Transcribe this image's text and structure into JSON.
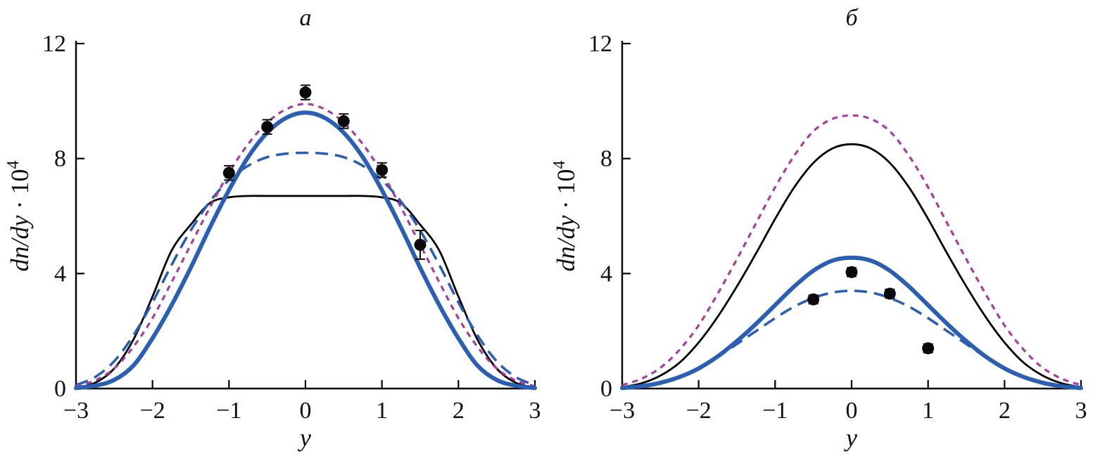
{
  "figure": {
    "background": "#ffffff",
    "panel_labels": [
      "a",
      "б"
    ]
  },
  "colors": {
    "curve_black": "#000000",
    "curve_blue": "#2a5fb4",
    "curve_magenta": "#a83d9e",
    "data_points": "#0a0a0a"
  },
  "chart_data": [
    {
      "type": "line",
      "panel_label": "a",
      "xlabel": "y",
      "ylabel_italic": "dn/dy",
      "ylabel_mid": " · 10",
      "ylabel_exp": "4",
      "xlim": [
        -3,
        3
      ],
      "ylim": [
        0,
        12
      ],
      "grid": false,
      "legend": "none",
      "xticks": [
        {
          "v": -3,
          "label": "−3"
        },
        {
          "v": -2,
          "label": "−2"
        },
        {
          "v": -1,
          "label": "−1"
        },
        {
          "v": 0,
          "label": "0"
        },
        {
          "v": 1,
          "label": "1"
        },
        {
          "v": 2,
          "label": "2"
        },
        {
          "v": 3,
          "label": "3"
        }
      ],
      "yticks": [
        {
          "v": 0,
          "label": "0"
        },
        {
          "v": 4,
          "label": "4"
        },
        {
          "v": 8,
          "label": "8"
        },
        {
          "v": 12,
          "label": "12"
        }
      ],
      "series": [
        {
          "name": "black-solid-thin",
          "color": "#000000",
          "width": 2.8,
          "dash": null,
          "x": [
            -3,
            -2.75,
            -2.5,
            -2.25,
            -2,
            -1.75,
            -1.5,
            -1.25,
            -1,
            -0.75,
            -0.5,
            -0.25,
            0,
            0.25,
            0.5,
            0.75,
            1,
            1.25,
            1.5,
            1.75,
            2,
            2.25,
            2.5,
            2.75,
            3
          ],
          "y": [
            0.03,
            0.2,
            0.7,
            1.7,
            3.2,
            4.8,
            5.7,
            6.45,
            6.65,
            6.7,
            6.7,
            6.7,
            6.7,
            6.7,
            6.7,
            6.7,
            6.65,
            6.45,
            5.7,
            4.8,
            3.2,
            1.7,
            0.7,
            0.2,
            0.03
          ]
        },
        {
          "name": "blue-long-dash",
          "color": "#2a5fb4",
          "width": 3.6,
          "dash": [
            18,
            10
          ],
          "x": [
            -3,
            -2.75,
            -2.5,
            -2.25,
            -2,
            -1.75,
            -1.5,
            -1.25,
            -1,
            -0.75,
            -0.5,
            -0.25,
            0,
            0.25,
            0.5,
            0.75,
            1,
            1.25,
            1.5,
            1.75,
            2,
            2.25,
            2.5,
            2.75,
            3
          ],
          "y": [
            0.12,
            0.4,
            0.95,
            1.85,
            3.0,
            4.3,
            5.5,
            6.5,
            7.25,
            7.75,
            8.05,
            8.17,
            8.2,
            8.17,
            8.05,
            7.75,
            7.25,
            6.5,
            5.5,
            4.3,
            3.0,
            1.85,
            0.95,
            0.4,
            0.12
          ]
        },
        {
          "name": "magenta-short-dash",
          "color": "#a83d9e",
          "width": 3.2,
          "dash": [
            8,
            7
          ],
          "x": [
            -3,
            -2.75,
            -2.5,
            -2.25,
            -2,
            -1.75,
            -1.5,
            -1.25,
            -1,
            -0.75,
            -0.5,
            -0.25,
            0,
            0.25,
            0.5,
            0.75,
            1,
            1.25,
            1.5,
            1.75,
            2,
            2.25,
            2.5,
            2.75,
            3
          ],
          "y": [
            0.08,
            0.28,
            0.7,
            1.45,
            2.45,
            3.7,
            5.0,
            6.3,
            7.5,
            8.5,
            9.25,
            9.72,
            9.9,
            9.72,
            9.25,
            8.5,
            7.5,
            6.3,
            5.0,
            3.7,
            2.45,
            1.45,
            0.7,
            0.28,
            0.08
          ]
        },
        {
          "name": "blue-solid-thick",
          "color": "#2a5fb4",
          "width": 6,
          "dash": null,
          "x": [
            -3,
            -2.75,
            -2.5,
            -2.25,
            -2,
            -1.75,
            -1.5,
            -1.25,
            -1,
            -0.75,
            -0.5,
            -0.25,
            0,
            0.25,
            0.5,
            0.75,
            1,
            1.25,
            1.5,
            1.75,
            2,
            2.25,
            2.5,
            2.75,
            3
          ],
          "y": [
            0.02,
            0.1,
            0.3,
            0.8,
            1.75,
            2.9,
            4.2,
            5.6,
            6.9,
            8.05,
            8.9,
            9.42,
            9.6,
            9.42,
            8.9,
            8.05,
            6.9,
            5.6,
            4.2,
            2.9,
            1.75,
            0.8,
            0.3,
            0.1,
            0.02
          ]
        }
      ],
      "points": {
        "name": "experimental-data",
        "color": "#0a0a0a",
        "radius": 8.5,
        "x": [
          -1,
          -0.5,
          0,
          0.5,
          1,
          1.5
        ],
        "y": [
          7.5,
          9.1,
          10.3,
          9.3,
          7.6,
          5.0
        ],
        "yerr": [
          0.25,
          0.25,
          0.25,
          0.25,
          0.25,
          0.5
        ]
      }
    },
    {
      "type": "line",
      "panel_label": "б",
      "xlabel": "y",
      "ylabel_italic": "dn/dy",
      "ylabel_mid": " · 10",
      "ylabel_exp": "4",
      "xlim": [
        -3,
        3
      ],
      "ylim": [
        0,
        12
      ],
      "grid": false,
      "legend": "none",
      "xticks": [
        {
          "v": -3,
          "label": "−3"
        },
        {
          "v": -2,
          "label": "−2"
        },
        {
          "v": -1,
          "label": "−1"
        },
        {
          "v": 0,
          "label": "0"
        },
        {
          "v": 1,
          "label": "1"
        },
        {
          "v": 2,
          "label": "2"
        },
        {
          "v": 3,
          "label": "3"
        }
      ],
      "yticks": [
        {
          "v": 0,
          "label": "0"
        },
        {
          "v": 4,
          "label": "4"
        },
        {
          "v": 8,
          "label": "8"
        },
        {
          "v": 12,
          "label": "12"
        }
      ],
      "series": [
        {
          "name": "blue-long-dash",
          "color": "#2a5fb4",
          "width": 3.6,
          "dash": [
            18,
            10
          ],
          "x": [
            -3,
            -2.75,
            -2.5,
            -2.25,
            -2,
            -1.75,
            -1.5,
            -1.25,
            -1,
            -0.75,
            -0.5,
            -0.25,
            0,
            0.25,
            0.5,
            0.75,
            1,
            1.25,
            1.5,
            1.75,
            2,
            2.25,
            2.5,
            2.75,
            3
          ],
          "y": [
            0.03,
            0.1,
            0.23,
            0.43,
            0.72,
            1.1,
            1.55,
            2.0,
            2.45,
            2.85,
            3.15,
            3.34,
            3.4,
            3.34,
            3.15,
            2.85,
            2.45,
            2.0,
            1.55,
            1.1,
            0.72,
            0.43,
            0.23,
            0.1,
            0.03
          ]
        },
        {
          "name": "black-solid-thin",
          "color": "#000000",
          "width": 2.8,
          "dash": null,
          "x": [
            -3,
            -2.75,
            -2.5,
            -2.25,
            -2,
            -1.75,
            -1.5,
            -1.25,
            -1,
            -0.75,
            -0.5,
            -0.25,
            0,
            0.25,
            0.5,
            0.75,
            1,
            1.25,
            1.5,
            1.75,
            2,
            2.25,
            2.5,
            2.75,
            3
          ],
          "y": [
            0.05,
            0.18,
            0.45,
            0.9,
            1.6,
            2.5,
            3.55,
            4.7,
            5.9,
            7.0,
            7.85,
            8.35,
            8.5,
            8.35,
            7.85,
            7.0,
            5.9,
            4.7,
            3.55,
            2.5,
            1.6,
            0.9,
            0.45,
            0.18,
            0.05
          ]
        },
        {
          "name": "magenta-short-dash",
          "color": "#a83d9e",
          "width": 3.2,
          "dash": [
            8,
            7
          ],
          "x": [
            -3,
            -2.75,
            -2.5,
            -2.25,
            -2,
            -1.75,
            -1.5,
            -1.25,
            -1,
            -0.75,
            -0.5,
            -0.25,
            0,
            0.25,
            0.5,
            0.75,
            1,
            1.25,
            1.5,
            1.75,
            2,
            2.25,
            2.5,
            2.75,
            3
          ],
          "y": [
            0.12,
            0.34,
            0.72,
            1.35,
            2.2,
            3.3,
            4.5,
            5.75,
            7.0,
            8.1,
            8.95,
            9.38,
            9.5,
            9.38,
            8.95,
            8.1,
            7.0,
            5.75,
            4.5,
            3.3,
            2.2,
            1.35,
            0.72,
            0.34,
            0.12
          ]
        },
        {
          "name": "blue-solid-thick",
          "color": "#2a5fb4",
          "width": 6,
          "dash": null,
          "x": [
            -3,
            -2.75,
            -2.5,
            -2.25,
            -2,
            -1.75,
            -1.5,
            -1.25,
            -1,
            -0.75,
            -0.5,
            -0.25,
            0,
            0.25,
            0.5,
            0.75,
            1,
            1.25,
            1.5,
            1.75,
            2,
            2.25,
            2.5,
            2.75,
            3
          ],
          "y": [
            0.02,
            0.08,
            0.2,
            0.4,
            0.7,
            1.12,
            1.65,
            2.25,
            2.9,
            3.55,
            4.1,
            4.45,
            4.55,
            4.45,
            4.1,
            3.55,
            2.9,
            2.25,
            1.65,
            1.12,
            0.7,
            0.4,
            0.2,
            0.08,
            0.02
          ]
        }
      ],
      "points": {
        "name": "experimental-data",
        "color": "#0a0a0a",
        "radius": 8.5,
        "x": [
          -0.5,
          0,
          0.5,
          1
        ],
        "y": [
          3.1,
          4.05,
          3.3,
          1.4
        ],
        "yerr": [
          0.15,
          0.15,
          0.15,
          0.15
        ]
      }
    }
  ]
}
